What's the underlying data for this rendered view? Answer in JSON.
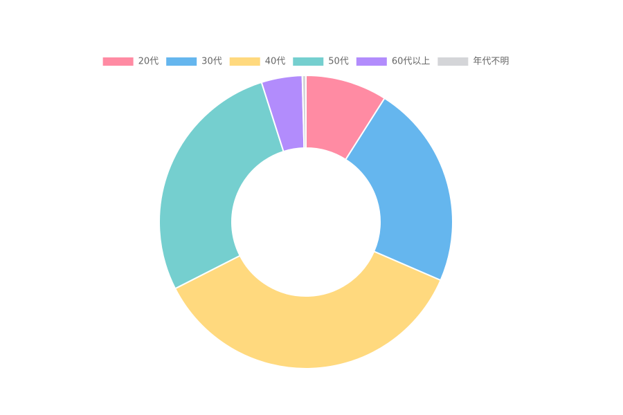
{
  "chart_data": {
    "type": "doughnut",
    "categories": [
      "20代",
      "30代",
      "40代",
      "50代",
      "60代以上",
      "年代不明"
    ],
    "values": [
      9,
      22.5,
      36,
      27.6,
      4.5,
      0.4
    ],
    "colors": [
      "#ff8ba3",
      "#65b6ee",
      "#ffd97e",
      "#75cfcf",
      "#b28cfc",
      "#d4d5d8"
    ],
    "legend": "top"
  }
}
